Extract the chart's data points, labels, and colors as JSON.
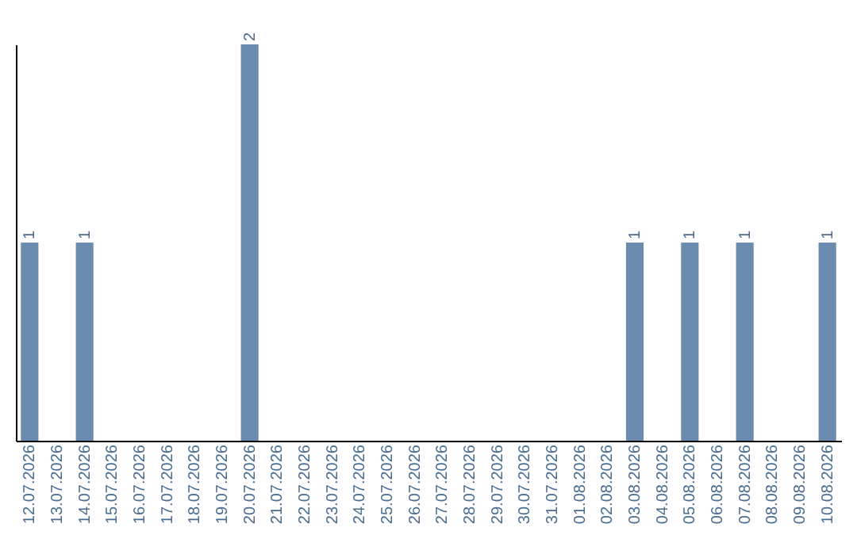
{
  "chart_data": {
    "type": "bar",
    "categories": [
      "12.07.2026",
      "13.07.2026",
      "14.07.2026",
      "15.07.2026",
      "16.07.2026",
      "17.07.2026",
      "18.07.2026",
      "19.07.2026",
      "20.07.2026",
      "21.07.2026",
      "22.07.2026",
      "23.07.2026",
      "24.07.2026",
      "25.07.2026",
      "26.07.2026",
      "27.07.2026",
      "28.07.2026",
      "29.07.2026",
      "30.07.2026",
      "31.07.2026",
      "01.08.2026",
      "02.08.2026",
      "03.08.2026",
      "04.08.2026",
      "05.08.2026",
      "06.08.2026",
      "07.08.2026",
      "08.08.2026",
      "09.08.2026",
      "10.08.2026"
    ],
    "values": [
      1,
      0,
      1,
      0,
      0,
      0,
      0,
      0,
      2,
      0,
      0,
      0,
      0,
      0,
      0,
      0,
      0,
      0,
      0,
      0,
      0,
      0,
      1,
      0,
      1,
      0,
      1,
      0,
      0,
      1
    ],
    "value_labels": [
      "1",
      null,
      "1",
      null,
      null,
      null,
      null,
      null,
      "2",
      null,
      null,
      null,
      null,
      null,
      null,
      null,
      null,
      null,
      null,
      null,
      null,
      null,
      "1",
      null,
      "1",
      null,
      "1",
      null,
      null,
      "1"
    ],
    "color": "#6b8cae",
    "grid": false
  }
}
